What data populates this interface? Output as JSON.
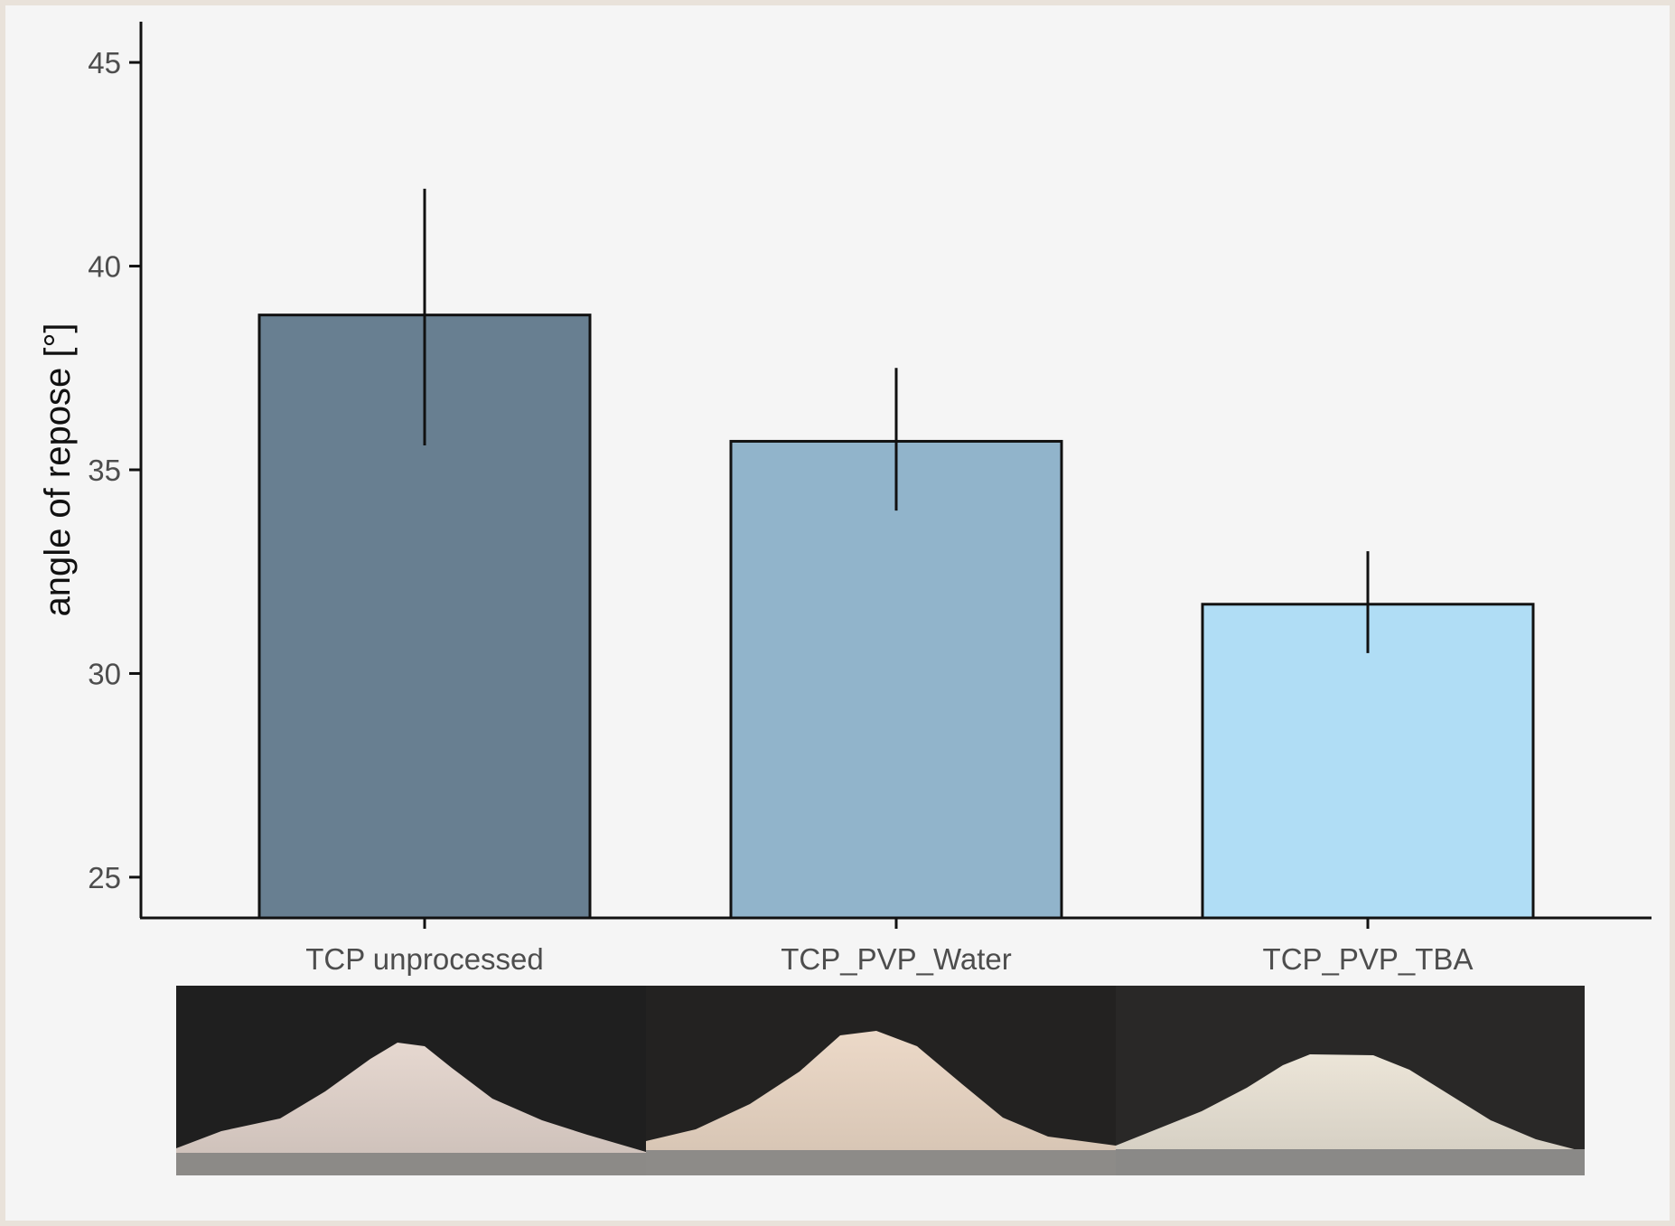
{
  "chart_data": {
    "type": "bar",
    "title": "",
    "xlabel": "",
    "ylabel": "angle of repose [°]",
    "categories": [
      "TCP unprocessed",
      "TCP_PVP_Water",
      "TCP_PVP_TBA"
    ],
    "values": [
      38.8,
      35.7,
      31.7
    ],
    "error_low": [
      35.6,
      34.0,
      30.5
    ],
    "error_high": [
      41.9,
      37.5,
      33.0
    ],
    "bar_colors": [
      "#687f91",
      "#91b4cb",
      "#b0ddf5"
    ],
    "ylim": [
      24,
      46
    ],
    "yticks": [
      25,
      30,
      35,
      40,
      45
    ],
    "grid": false,
    "legend": "none",
    "photos_below_bars": [
      "powder heap photo",
      "powder heap photo",
      "powder heap photo"
    ]
  }
}
